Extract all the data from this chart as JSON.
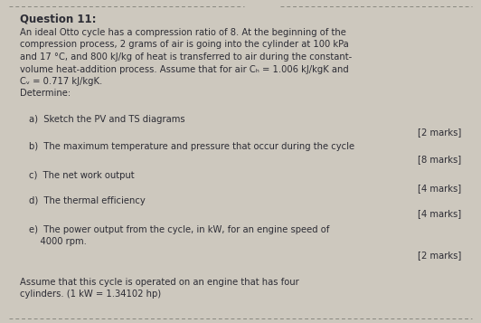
{
  "title": "Question 11:",
  "background_color": "#cdc8be",
  "text_color": "#2d2d35",
  "title_fontsize": 8.5,
  "body_fontsize": 7.2,
  "marks_fontsize": 7.2,
  "para1_line1": "An ideal Otto cycle has a compression ratio of 8. At the beginning of the",
  "para1_line2": "compression process, 2 grams of air is going into the cylinder at 100 kPa",
  "para1_line3": "and 17 °C, and 800 kJ/kg of heat is transferred to air during the constant-",
  "para1_line4": "volume heat-addition process. Assume that for air Cₕ = 1.006 kJ/kgK and",
  "para1_line5": "Cᵥ = 0.717 kJ/kgK.",
  "para1_line6": "Determine:",
  "item_a_text": "a)  Sketch the PV and TS diagrams",
  "item_a_mark": "[2 marks]",
  "item_b_text": "b)  The maximum temperature and pressure that occur during the cycle",
  "item_b_mark": "[8 marks]",
  "item_c_text": "c)  The net work output",
  "item_c_mark": "[4 marks]",
  "item_d_text": "d)  The thermal efficiency",
  "item_d_mark": "[4 marks]",
  "item_e_line1": "e)  The power output from the cycle, in kW, for an engine speed of",
  "item_e_line2": "    4000 rpm.",
  "item_e_mark": "[2 marks]",
  "footer_line1": "Assume that this cycle is operated on an engine that has four",
  "footer_line2": "cylinders. (1 kW = 1.34102 hp)",
  "border_color": "#888880",
  "border_dash": "--"
}
